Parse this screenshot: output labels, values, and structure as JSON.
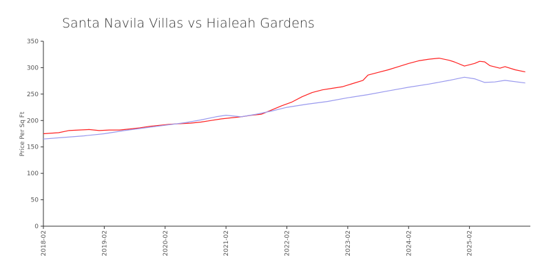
{
  "chart_data": {
    "type": "line",
    "title": "Santa Navila Villas vs Hialeah Gardens",
    "xlabel": "",
    "ylabel": "Price Per Sq Ft",
    "ylim": [
      0,
      350
    ],
    "yticks": [
      0,
      50,
      100,
      150,
      200,
      250,
      300,
      350
    ],
    "xlim": [
      "2018-02",
      "2026-02"
    ],
    "xticks": [
      "2018-02",
      "2019-02",
      "2020-02",
      "2021-02",
      "2022-02",
      "2023-02",
      "2024-02",
      "2025-02"
    ],
    "grid": false,
    "legend": false,
    "series": [
      {
        "color": "#ff2020",
        "points": [
          [
            "2018-02",
            175
          ],
          [
            "2018-05",
            177
          ],
          [
            "2018-07",
            181
          ],
          [
            "2018-09",
            182
          ],
          [
            "2018-11",
            183
          ],
          [
            "2019-01",
            181
          ],
          [
            "2019-03",
            182
          ],
          [
            "2019-05",
            182
          ],
          [
            "2019-07",
            184
          ],
          [
            "2019-09",
            186
          ],
          [
            "2019-11",
            189
          ],
          [
            "2020-01",
            191
          ],
          [
            "2020-03",
            193
          ],
          [
            "2020-05",
            194
          ],
          [
            "2020-07",
            195
          ],
          [
            "2020-09",
            197
          ],
          [
            "2020-11",
            200
          ],
          [
            "2021-01",
            203
          ],
          [
            "2021-03",
            205
          ],
          [
            "2021-05",
            207
          ],
          [
            "2021-07",
            210
          ],
          [
            "2021-09",
            212
          ],
          [
            "2021-11",
            220
          ],
          [
            "2022-01",
            228
          ],
          [
            "2022-03",
            235
          ],
          [
            "2022-05",
            245
          ],
          [
            "2022-07",
            253
          ],
          [
            "2022-09",
            258
          ],
          [
            "2022-11",
            261
          ],
          [
            "2023-01",
            264
          ],
          [
            "2023-03",
            270
          ],
          [
            "2023-05",
            276
          ],
          [
            "2023-06",
            286
          ],
          [
            "2023-08",
            291
          ],
          [
            "2023-10",
            296
          ],
          [
            "2023-12",
            302
          ],
          [
            "2024-02",
            308
          ],
          [
            "2024-04",
            313
          ],
          [
            "2024-06",
            316
          ],
          [
            "2024-08",
            318
          ],
          [
            "2024-10",
            314
          ],
          [
            "2024-11",
            311
          ],
          [
            "2025-01",
            303
          ],
          [
            "2025-03",
            308
          ],
          [
            "2025-04",
            312
          ],
          [
            "2025-05",
            311
          ],
          [
            "2025-06",
            304
          ],
          [
            "2025-08",
            299
          ],
          [
            "2025-09",
            302
          ],
          [
            "2025-11",
            296
          ],
          [
            "2026-01",
            292
          ]
        ]
      },
      {
        "color": "#9999ee",
        "points": [
          [
            "2018-02",
            165
          ],
          [
            "2018-06",
            168
          ],
          [
            "2018-10",
            171
          ],
          [
            "2019-02",
            175
          ],
          [
            "2019-06",
            181
          ],
          [
            "2019-10",
            186
          ],
          [
            "2020-02",
            191
          ],
          [
            "2020-06",
            196
          ],
          [
            "2020-09",
            201
          ],
          [
            "2020-12",
            207
          ],
          [
            "2021-02",
            210
          ],
          [
            "2021-05",
            207
          ],
          [
            "2021-08",
            212
          ],
          [
            "2021-11",
            218
          ],
          [
            "2022-02",
            225
          ],
          [
            "2022-06",
            231
          ],
          [
            "2022-10",
            236
          ],
          [
            "2023-02",
            243
          ],
          [
            "2023-06",
            249
          ],
          [
            "2023-10",
            256
          ],
          [
            "2024-02",
            263
          ],
          [
            "2024-06",
            269
          ],
          [
            "2024-10",
            276
          ],
          [
            "2025-01",
            282
          ],
          [
            "2025-03",
            279
          ],
          [
            "2025-05",
            272
          ],
          [
            "2025-07",
            273
          ],
          [
            "2025-09",
            276
          ],
          [
            "2026-01",
            271
          ]
        ]
      }
    ]
  }
}
